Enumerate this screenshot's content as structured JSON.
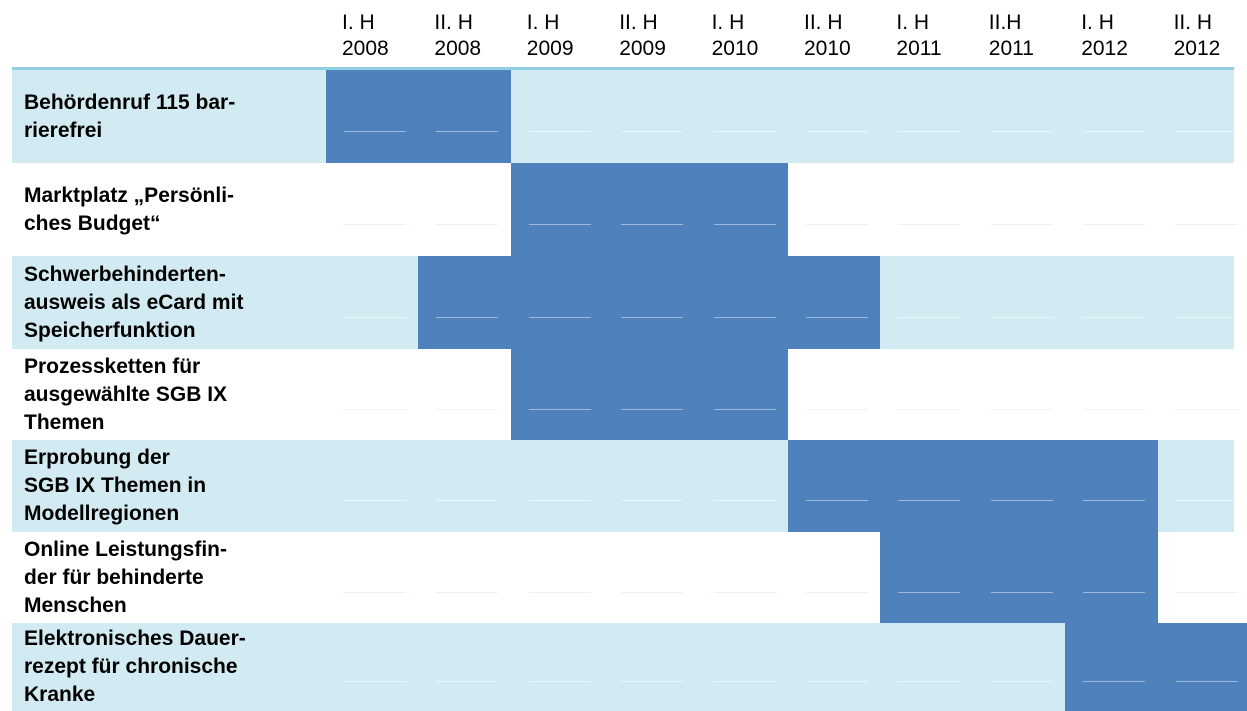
{
  "chart_data": {
    "type": "gantt",
    "periods": [
      "I. H\n2008",
      "II. H\n2008",
      "I. H\n2009",
      "II. H\n2009",
      "I. H\n2010",
      "II. H\n2010",
      "I. H\n2011",
      "II.H\n2011",
      "I. H\n2012",
      "II. H\n2012"
    ],
    "tasks": [
      {
        "label": "Behördenruf 115 bar-\nrierefrei",
        "start": 0,
        "end": 1
      },
      {
        "label": "Marktplatz „Persönli-\nches Budget“",
        "start": 2,
        "end": 4
      },
      {
        "label": "Schwerbehinderten-\nausweis als eCard mit\nSpeicherfunktion",
        "start": 1,
        "end": 5
      },
      {
        "label": "Prozessketten für\nausgewählte SGB IX\nThemen",
        "start": 2,
        "end": 4
      },
      {
        "label": "Erprobung der\nSGB IX Themen in\nModellregionen",
        "start": 5,
        "end": 8
      },
      {
        "label": "Online Leistungsfin-\nder für behinderte\nMenschen",
        "start": 6,
        "end": 8
      },
      {
        "label": "Elektronisches Dauer-\nrezept für chronische\nKranke",
        "start": 8,
        "end": 9
      }
    ]
  },
  "colors": {
    "bar": "#4f81bd",
    "band_light": "#d2eaf2",
    "band_white": "#ffffff",
    "header_rule": "#8fd0e4"
  }
}
